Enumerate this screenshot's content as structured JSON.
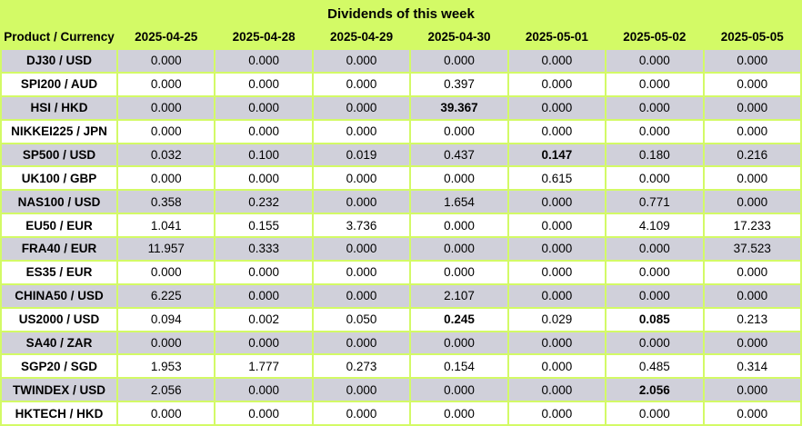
{
  "title": "Dividends of this week",
  "colors": {
    "header_bg": "#D3FA66",
    "row_alt_bg": "#D0D0DA",
    "row_bg": "#FFFFFF",
    "border": "#D3FA66",
    "text": "#000000"
  },
  "table": {
    "product_header": "Product / Currency",
    "date_headers": [
      "2025-04-25",
      "2025-04-28",
      "2025-04-29",
      "2025-04-30",
      "2025-05-01",
      "2025-05-02",
      "2025-05-05"
    ],
    "rows": [
      {
        "product": "DJ30 / USD",
        "values": [
          "0.000",
          "0.000",
          "0.000",
          "0.000",
          "0.000",
          "0.000",
          "0.000"
        ],
        "bold_indices": []
      },
      {
        "product": "SPI200 / AUD",
        "values": [
          "0.000",
          "0.000",
          "0.000",
          "0.397",
          "0.000",
          "0.000",
          "0.000"
        ],
        "bold_indices": []
      },
      {
        "product": "HSI / HKD",
        "values": [
          "0.000",
          "0.000",
          "0.000",
          "39.367",
          "0.000",
          "0.000",
          "0.000"
        ],
        "bold_indices": [
          3
        ]
      },
      {
        "product": "NIKKEI225 / JPN",
        "values": [
          "0.000",
          "0.000",
          "0.000",
          "0.000",
          "0.000",
          "0.000",
          "0.000"
        ],
        "bold_indices": []
      },
      {
        "product": "SP500 / USD",
        "values": [
          "0.032",
          "0.100",
          "0.019",
          "0.437",
          "0.147",
          "0.180",
          "0.216"
        ],
        "bold_indices": [
          4
        ]
      },
      {
        "product": "UK100 / GBP",
        "values": [
          "0.000",
          "0.000",
          "0.000",
          "0.000",
          "0.615",
          "0.000",
          "0.000"
        ],
        "bold_indices": []
      },
      {
        "product": "NAS100 / USD",
        "values": [
          "0.358",
          "0.232",
          "0.000",
          "1.654",
          "0.000",
          "0.771",
          "0.000"
        ],
        "bold_indices": []
      },
      {
        "product": "EU50 / EUR",
        "values": [
          "1.041",
          "0.155",
          "3.736",
          "0.000",
          "0.000",
          "4.109",
          "17.233"
        ],
        "bold_indices": []
      },
      {
        "product": "FRA40 / EUR",
        "values": [
          "11.957",
          "0.333",
          "0.000",
          "0.000",
          "0.000",
          "0.000",
          "37.523"
        ],
        "bold_indices": []
      },
      {
        "product": "ES35 / EUR",
        "values": [
          "0.000",
          "0.000",
          "0.000",
          "0.000",
          "0.000",
          "0.000",
          "0.000"
        ],
        "bold_indices": []
      },
      {
        "product": "CHINA50 / USD",
        "values": [
          "6.225",
          "0.000",
          "0.000",
          "2.107",
          "0.000",
          "0.000",
          "0.000"
        ],
        "bold_indices": []
      },
      {
        "product": "US2000 / USD",
        "values": [
          "0.094",
          "0.002",
          "0.050",
          "0.245",
          "0.029",
          "0.085",
          "0.213"
        ],
        "bold_indices": [
          3,
          5
        ]
      },
      {
        "product": "SA40 / ZAR",
        "values": [
          "0.000",
          "0.000",
          "0.000",
          "0.000",
          "0.000",
          "0.000",
          "0.000"
        ],
        "bold_indices": []
      },
      {
        "product": "SGP20 / SGD",
        "values": [
          "1.953",
          "1.777",
          "0.273",
          "0.154",
          "0.000",
          "0.485",
          "0.314"
        ],
        "bold_indices": []
      },
      {
        "product": "TWINDEX / USD",
        "values": [
          "2.056",
          "0.000",
          "0.000",
          "0.000",
          "0.000",
          "2.056",
          "0.000"
        ],
        "bold_indices": [
          5
        ]
      },
      {
        "product": "HKTECH / HKD",
        "values": [
          "0.000",
          "0.000",
          "0.000",
          "0.000",
          "0.000",
          "0.000",
          "0.000"
        ],
        "bold_indices": []
      }
    ]
  }
}
